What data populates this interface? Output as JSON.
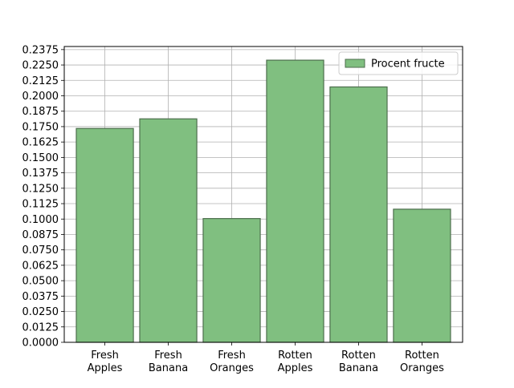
{
  "chart_data": {
    "type": "bar",
    "categories": [
      [
        "Fresh",
        "Apples"
      ],
      [
        "Fresh",
        "Banana"
      ],
      [
        "Fresh",
        "Oranges"
      ],
      [
        "Rotten",
        "Apples"
      ],
      [
        "Rotten",
        "Banana"
      ],
      [
        "Rotten",
        "Oranges"
      ]
    ],
    "series": [
      {
        "name": "Procent fructe",
        "values": [
          0.1735,
          0.1813,
          0.1004,
          0.2289,
          0.2072,
          0.108
        ]
      }
    ],
    "ylim": [
      0,
      0.24
    ],
    "yticks": [
      "0.0000",
      "0.0125",
      "0.0250",
      "0.0375",
      "0.0500",
      "0.0625",
      "0.0750",
      "0.0875",
      "0.1000",
      "0.1125",
      "0.1250",
      "0.1375",
      "0.1500",
      "0.1625",
      "0.1750",
      "0.1875",
      "0.2000",
      "0.2125",
      "0.2250",
      "0.2375"
    ],
    "grid": true,
    "legend_position": "top-right",
    "colors": {
      "bar_fill": "#80bf80",
      "bar_edge": "#4d6e4d",
      "grid": "#b0b0b0",
      "axis": "#000000"
    },
    "title": "",
    "xlabel": "",
    "ylabel": ""
  }
}
